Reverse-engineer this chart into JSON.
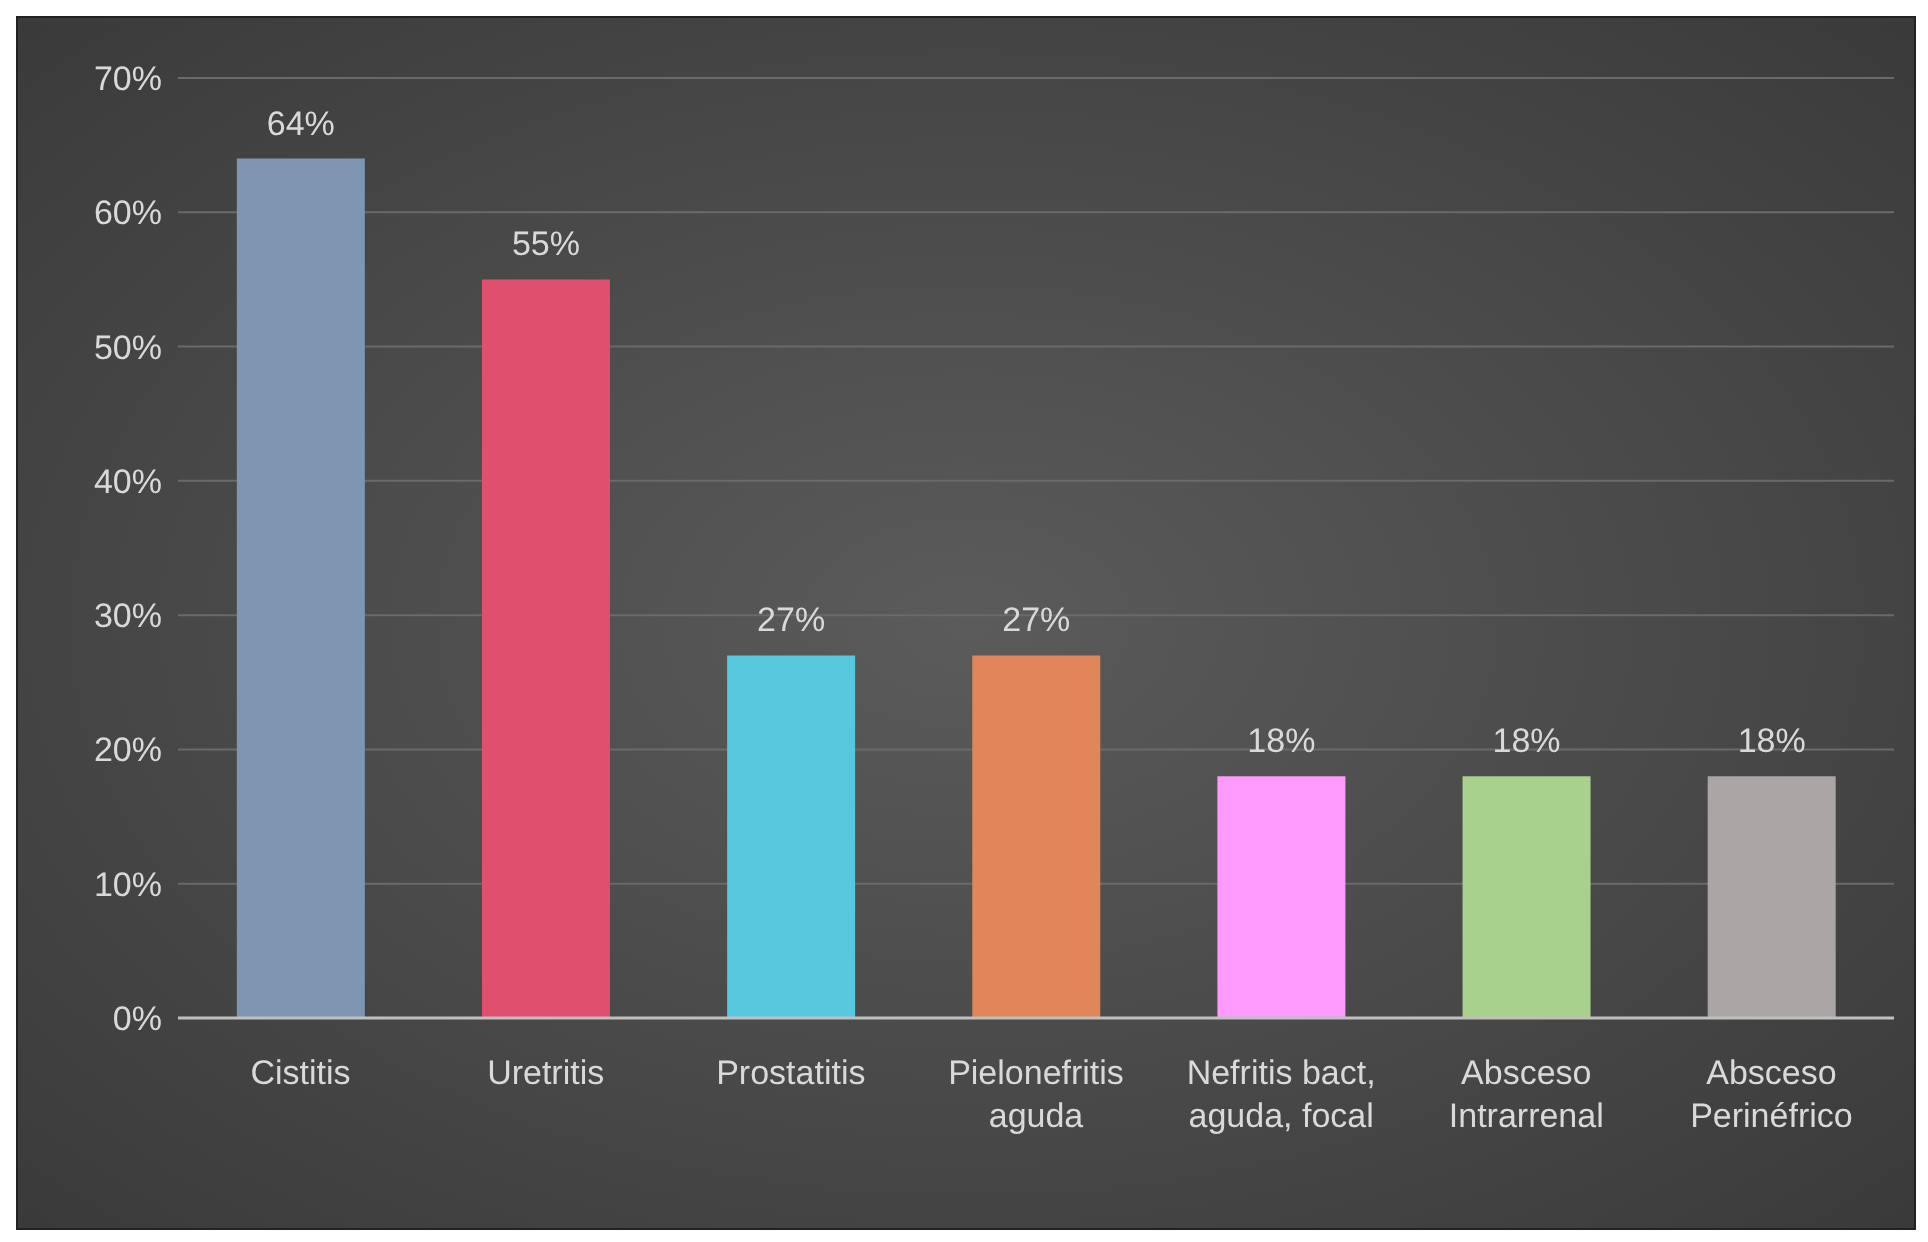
{
  "chart_data": {
    "type": "bar",
    "categories": [
      "Cistitis",
      "Uretritis",
      "Prostatitis",
      "Pielonefritis aguda",
      "Nefritis bact, aguda, focal",
      "Absceso Intrarrenal",
      "Absceso Perinéfrico"
    ],
    "values": [
      64,
      55,
      27,
      27,
      18,
      18,
      18
    ],
    "colors": [
      "#7f96b2",
      "#e14f6e",
      "#56c7dc",
      "#e0865a",
      "#fe99fe",
      "#a8d18d",
      "#aba5a5"
    ],
    "value_labels": [
      "64%",
      "55%",
      "27%",
      "27%",
      "18%",
      "18%",
      "18%"
    ],
    "ylim": [
      0,
      70
    ],
    "yticks": [
      {
        "value": 0,
        "label": "0%"
      },
      {
        "value": 10,
        "label": "10%"
      },
      {
        "value": 20,
        "label": "20%"
      },
      {
        "value": 30,
        "label": "30%"
      },
      {
        "value": 40,
        "label": "40%"
      },
      {
        "value": 50,
        "label": "50%"
      },
      {
        "value": 60,
        "label": "60%"
      },
      {
        "value": 70,
        "label": "70%"
      }
    ],
    "grid": "y"
  }
}
